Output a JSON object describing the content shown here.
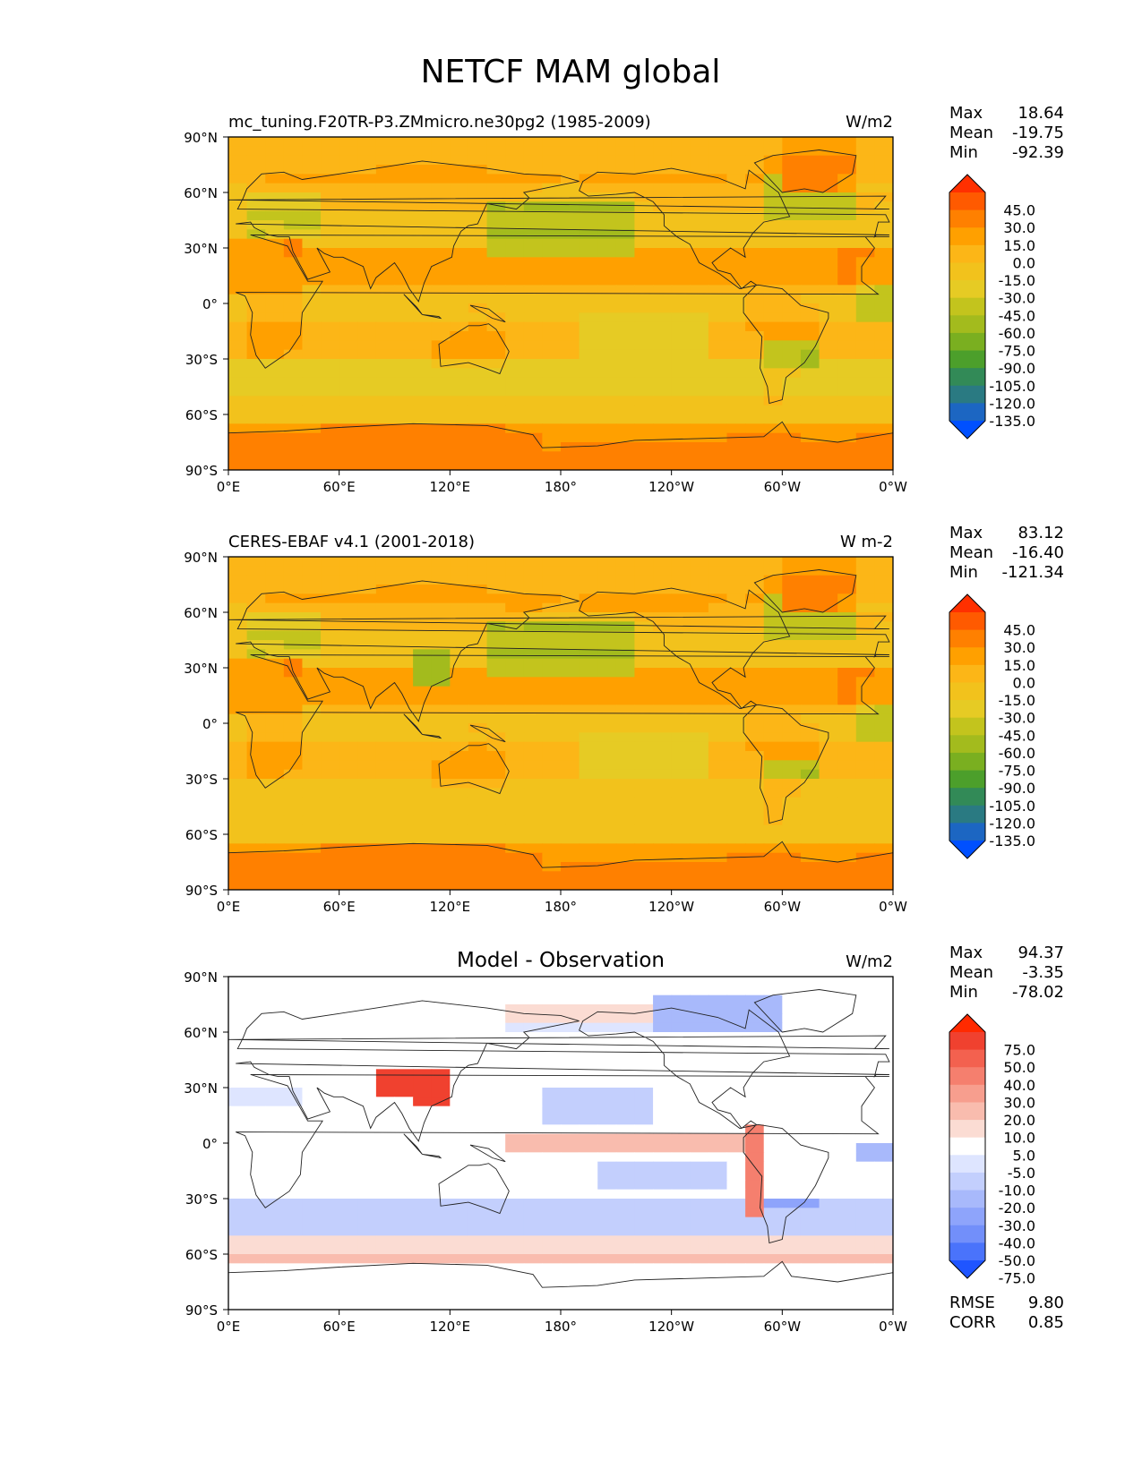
{
  "figure": {
    "title": "NETCF MAM global"
  },
  "panels": [
    {
      "id": "model",
      "left_title": "mc_tuning.F20TR-P3.ZMmicro.ne30pg2 (1985-2009)",
      "center_title": "",
      "units": "W/m2",
      "stats": [
        {
          "label": "Max",
          "value": "18.64"
        },
        {
          "label": "Mean",
          "value": "-19.75"
        },
        {
          "label": "Min",
          "value": "-92.39"
        }
      ],
      "colorbar": {
        "levels": [
          "45.0",
          "30.0",
          "15.0",
          "0.0",
          "-15.0",
          "-30.0",
          "-45.0",
          "-60.0",
          "-75.0",
          "-90.0",
          "-105.0",
          "-120.0",
          "-135.0"
        ],
        "colors": [
          "#ff3000",
          "#ff5a00",
          "#ff8000",
          "#ffa000",
          "#fcb617",
          "#f2c21c",
          "#e6cb24",
          "#c3c41d",
          "#a3bb1d",
          "#7aaf20",
          "#4c9f2b",
          "#328a57",
          "#2a7a82",
          "#1c66c2",
          "#0050ff"
        ]
      },
      "field": "model"
    },
    {
      "id": "obs",
      "left_title": "CERES-EBAF v4.1 (2001-2018)",
      "center_title": "",
      "units": "W m-2",
      "stats": [
        {
          "label": "Max",
          "value": "83.12"
        },
        {
          "label": "Mean",
          "value": "-16.40"
        },
        {
          "label": "Min",
          "value": "-121.34"
        }
      ],
      "colorbar": {
        "levels": [
          "45.0",
          "30.0",
          "15.0",
          "0.0",
          "-15.0",
          "-30.0",
          "-45.0",
          "-60.0",
          "-75.0",
          "-90.0",
          "-105.0",
          "-120.0",
          "-135.0"
        ],
        "colors": [
          "#ff3000",
          "#ff5a00",
          "#ff8000",
          "#ffa000",
          "#fcb617",
          "#f2c21c",
          "#e6cb24",
          "#c3c41d",
          "#a3bb1d",
          "#7aaf20",
          "#4c9f2b",
          "#328a57",
          "#2a7a82",
          "#1c66c2",
          "#0050ff"
        ]
      },
      "field": "obs"
    },
    {
      "id": "diff",
      "left_title": "",
      "center_title": "Model - Observation",
      "units": "W/m2",
      "stats": [
        {
          "label": "Max",
          "value": "94.37"
        },
        {
          "label": "Mean",
          "value": "-3.35"
        },
        {
          "label": "Min",
          "value": "-78.02"
        }
      ],
      "extra_stats": [
        {
          "label": "RMSE",
          "value": "9.80"
        },
        {
          "label": "CORR",
          "value": "0.85"
        }
      ],
      "colorbar": {
        "levels": [
          "75.0",
          "50.0",
          "40.0",
          "30.0",
          "20.0",
          "10.0",
          "5.0",
          "-5.0",
          "-10.0",
          "-20.0",
          "-30.0",
          "-40.0",
          "-50.0",
          "-75.0"
        ],
        "colors": [
          "#ff2a00",
          "#f0412f",
          "#f3614f",
          "#f57f6e",
          "#f79e8e",
          "#f9bcae",
          "#fbdcd3",
          "#ffffff",
          "#dee5ff",
          "#c3cffd",
          "#a8b9fb",
          "#8ea4fb",
          "#728ffa",
          "#4a73fb",
          "#1f55ff"
        ]
      },
      "field": "diff"
    }
  ],
  "axes": {
    "yticks": [
      "90°N",
      "60°N",
      "30°N",
      "0°",
      "30°S",
      "60°S",
      "90°S"
    ],
    "xticks": [
      "0°E",
      "60°E",
      "120°E",
      "180°",
      "120°W",
      "60°W",
      "0°W"
    ]
  }
}
